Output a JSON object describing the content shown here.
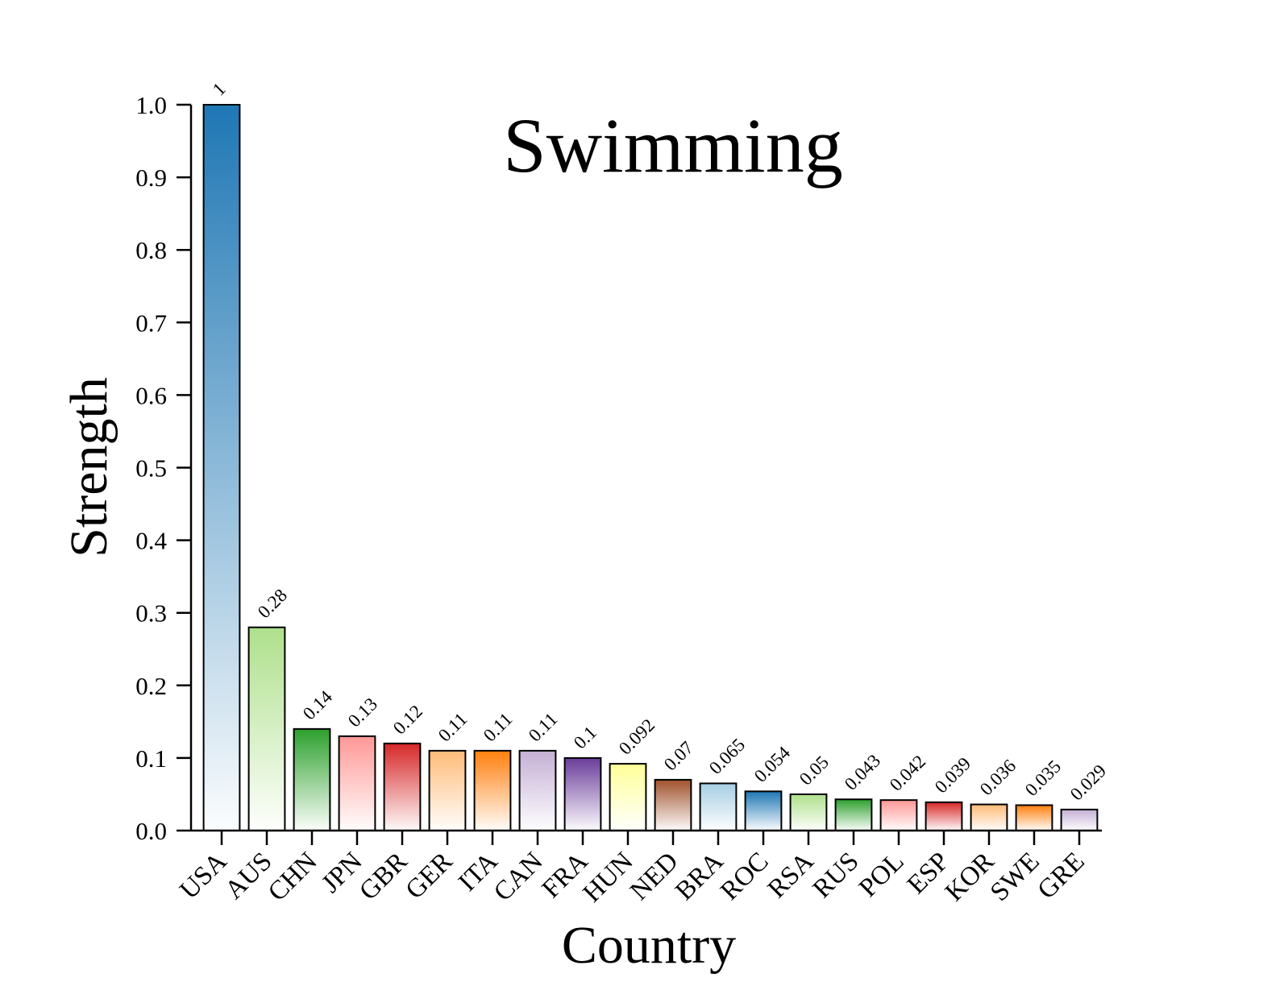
{
  "chart_data": {
    "type": "bar",
    "title": "Swimming",
    "xlabel": "Country",
    "ylabel": "Strength",
    "ylim": [
      0,
      1.0
    ],
    "yticks": [
      "0.0",
      "0.1",
      "0.2",
      "0.3",
      "0.4",
      "0.5",
      "0.6",
      "0.7",
      "0.8",
      "0.9",
      "1.0"
    ],
    "categories": [
      "USA",
      "AUS",
      "CHN",
      "JPN",
      "GBR",
      "GER",
      "ITA",
      "CAN",
      "FRA",
      "HUN",
      "NED",
      "BRA",
      "ROC",
      "RSA",
      "RUS",
      "POL",
      "ESP",
      "KOR",
      "SWE",
      "GRE"
    ],
    "values": [
      1,
      0.28,
      0.14,
      0.13,
      0.12,
      0.11,
      0.11,
      0.11,
      0.1,
      0.092,
      0.07,
      0.065,
      0.054,
      0.05,
      0.043,
      0.042,
      0.039,
      0.036,
      0.035,
      0.029
    ],
    "value_labels": [
      "1",
      "0.28",
      "0.14",
      "0.13",
      "0.12",
      "0.11",
      "0.11",
      "0.11",
      "0.1",
      "0.092",
      "0.07",
      "0.065",
      "0.054",
      "0.05",
      "0.043",
      "0.042",
      "0.039",
      "0.036",
      "0.035",
      "0.029"
    ],
    "bar_colors": [
      "#1f77b4",
      "#aee08b",
      "#2ca02c",
      "#ff9896",
      "#d62728",
      "#ffbb78",
      "#ff7f0e",
      "#c5b0d5",
      "#6a3d9a",
      "#ffff99",
      "#a0522d",
      "#a6cee3",
      "#1f77b4",
      "#aee08b",
      "#2ca02c",
      "#ff9896",
      "#d62728",
      "#ffbb78",
      "#ff7f0e",
      "#c5b0d5"
    ],
    "grid": false,
    "legend": "none"
  }
}
